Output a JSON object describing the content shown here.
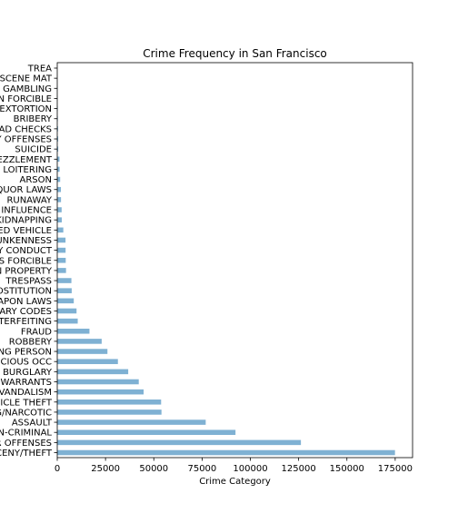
{
  "chart_data": {
    "type": "bar",
    "orientation": "horizontal",
    "title": "Crime Frequency in San Francisco",
    "xlabel": "Crime Category",
    "ylabel": "",
    "xlim": [
      0,
      184000
    ],
    "xticks": [
      0,
      25000,
      50000,
      75000,
      100000,
      125000,
      150000,
      175000
    ],
    "grid": false,
    "bar_color": "#7fb1d3",
    "categories": [
      "LARCENY/THEFT",
      "OTHER OFFENSES",
      "NON-CRIMINAL",
      "ASSAULT",
      "DRUG/NARCOTIC",
      "VEHICLE THEFT",
      "VANDALISM",
      "WARRANTS",
      "BURGLARY",
      "SUSPICIOUS OCC",
      "MISSING PERSON",
      "ROBBERY",
      "FRAUD",
      "FORGERY/COUNTERFEITING",
      "SECONDARY CODES",
      "WEAPON LAWS",
      "PROSTITUTION",
      "TRESPASS",
      "STOLEN PROPERTY",
      "SEX OFFENSES FORCIBLE",
      "DISORDERLY CONDUCT",
      "DRUNKENNESS",
      "RECOVERED VEHICLE",
      "KIDNAPPING",
      "DRIVING UNDER THE INFLUENCE",
      "RUNAWAY",
      "LIQUOR LAWS",
      "ARSON",
      "LOITERING",
      "EMBEZZLEMENT",
      "SUICIDE",
      "FAMILY OFFENSES",
      "BAD CHECKS",
      "BRIBERY",
      "EXTORTION",
      "SEX OFFENSES NON FORCIBLE",
      "GAMBLING",
      "PORNOGRAPHY/OBSCENE MAT",
      "TREA"
    ],
    "values": [
      174900,
      126182,
      92304,
      76876,
      53971,
      53781,
      44725,
      42214,
      36755,
      31414,
      25989,
      23000,
      16679,
      10609,
      9985,
      8555,
      7484,
      7326,
      4540,
      4388,
      4320,
      4280,
      3138,
      2341,
      2268,
      1946,
      1903,
      1513,
      1225,
      1166,
      508,
      491,
      406,
      289,
      256,
      148,
      146,
      22,
      6
    ]
  }
}
